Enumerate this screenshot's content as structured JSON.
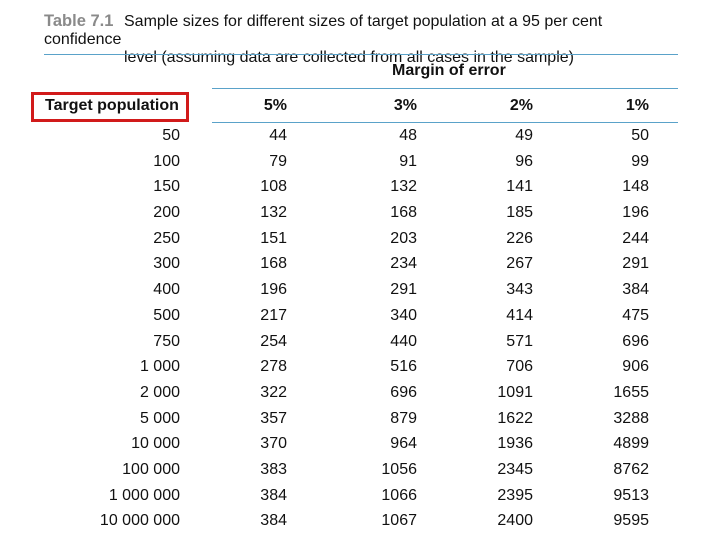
{
  "caption": {
    "label": "Table 7.1",
    "line1": "Sample sizes for different sizes of target population at a 95 per cent confidence",
    "line2": "level (assuming data are collected from all cases in the sample)"
  },
  "table": {
    "group_header": "Margin of error",
    "row_header": "Target population",
    "columns": [
      "5%",
      "3%",
      "2%",
      "1%"
    ],
    "rows": [
      [
        "50",
        "44",
        "48",
        "49",
        "50"
      ],
      [
        "100",
        "79",
        "91",
        "96",
        "99"
      ],
      [
        "150",
        "108",
        "132",
        "141",
        "148"
      ],
      [
        "200",
        "132",
        "168",
        "185",
        "196"
      ],
      [
        "250",
        "151",
        "203",
        "226",
        "244"
      ],
      [
        "300",
        "168",
        "234",
        "267",
        "291"
      ],
      [
        "400",
        "196",
        "291",
        "343",
        "384"
      ],
      [
        "500",
        "217",
        "340",
        "414",
        "475"
      ],
      [
        "750",
        "254",
        "440",
        "571",
        "696"
      ],
      [
        "1 000",
        "278",
        "516",
        "706",
        "906"
      ],
      [
        "2 000",
        "322",
        "696",
        "1091",
        "1655"
      ],
      [
        "5 000",
        "357",
        "879",
        "1622",
        "3288"
      ],
      [
        "10 000",
        "370",
        "964",
        "1936",
        "4899"
      ],
      [
        "100 000",
        "383",
        "1056",
        "2345",
        "8762"
      ],
      [
        "1 000 000",
        "384",
        "1066",
        "2395",
        "9513"
      ],
      [
        "10 000 000",
        "384",
        "1067",
        "2400",
        "9595"
      ]
    ]
  },
  "colors": {
    "rule": "#5aa2c9",
    "highlight_box": "#d11a1a",
    "caption_label": "#8a8a8a"
  }
}
